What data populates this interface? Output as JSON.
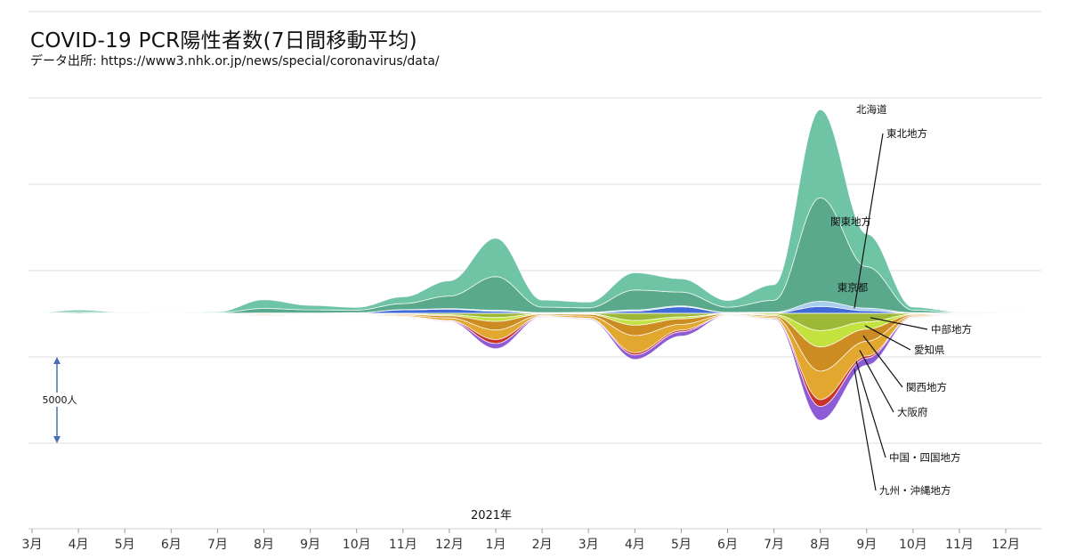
{
  "header": {
    "title": "COVID-19 PCR陽性者数(7日間移動平均)",
    "source": "データ出所: https://www3.nhk.or.jp/news/special/coronavirus/data/"
  },
  "chart_data": {
    "type": "area",
    "subtype": "streamgraph",
    "title": "COVID-19 PCR陽性者数(7日間移動平均)",
    "unit": "人",
    "scale_bar": {
      "label": "5000人",
      "value": 5000
    },
    "year_label": "2021年",
    "x_ticks": [
      "3月",
      "4月",
      "5月",
      "6月",
      "7月",
      "8月",
      "9月",
      "10月",
      "11月",
      "12月",
      "1月",
      "2月",
      "3月",
      "4月",
      "5月",
      "6月",
      "7月",
      "8月",
      "9月",
      "10月",
      "11月",
      "12月"
    ],
    "x_months": [
      0,
      1,
      2,
      3,
      4,
      5,
      6,
      7,
      8,
      9,
      10,
      11,
      12,
      13,
      14,
      15,
      16,
      17,
      18,
      19,
      20,
      21,
      21.85
    ],
    "series": [
      {
        "name": "九州・沖縄地方",
        "color": "#8e5bd6",
        "above": false,
        "label": true,
        "values": [
          0,
          0,
          0,
          0,
          0,
          25,
          5,
          10,
          15,
          40,
          300,
          35,
          45,
          260,
          250,
          18,
          50,
          800,
          420,
          30,
          10,
          5,
          3
        ]
      },
      {
        "name": "中国・四国地方",
        "color": "#c93428",
        "above": false,
        "label": true,
        "values": [
          0,
          0,
          0,
          0,
          0,
          12,
          5,
          8,
          12,
          40,
          230,
          20,
          25,
          120,
          100,
          12,
          18,
          400,
          120,
          15,
          5,
          3,
          2
        ]
      },
      {
        "name": "大阪府",
        "color": "#e2a72f",
        "above": false,
        "label": true,
        "values": [
          0,
          12,
          0,
          0,
          0,
          45,
          15,
          25,
          55,
          140,
          550,
          50,
          120,
          1000,
          330,
          30,
          80,
          1650,
          850,
          60,
          20,
          8,
          5
        ]
      },
      {
        "name": "関西地方",
        "color": "#cd8c22",
        "above": false,
        "label": true,
        "values": [
          0,
          8,
          0,
          0,
          0,
          40,
          15,
          25,
          55,
          120,
          500,
          60,
          100,
          600,
          320,
          40,
          75,
          1400,
          700,
          60,
          15,
          8,
          5
        ]
      },
      {
        "name": "愛知県",
        "color": "#c4e23f",
        "above": false,
        "label": true,
        "values": [
          0,
          0,
          0,
          0,
          0,
          20,
          5,
          10,
          25,
          60,
          220,
          20,
          20,
          270,
          110,
          10,
          55,
          950,
          420,
          25,
          5,
          3,
          2
        ]
      },
      {
        "name": "中部地方",
        "color": "#9db836",
        "above": false,
        "label": true,
        "values": [
          0,
          0,
          0,
          0,
          0,
          20,
          8,
          12,
          40,
          90,
          250,
          30,
          40,
          420,
          210,
          20,
          75,
          1000,
          500,
          50,
          10,
          5,
          3
        ]
      },
      {
        "name": "東京都",
        "color": "#6ec4a4",
        "above": true,
        "label": true,
        "values": [
          0,
          120,
          30,
          20,
          50,
          500,
          260,
          160,
          390,
          880,
          2220,
          410,
          330,
          1000,
          770,
          390,
          900,
          5100,
          1900,
          170,
          40,
          20,
          13
        ]
      },
      {
        "name": "関東地方",
        "color": "#5aa98c",
        "above": true,
        "label": true,
        "values": [
          0,
          70,
          25,
          15,
          30,
          270,
          180,
          150,
          350,
          730,
          1950,
          320,
          260,
          1150,
          800,
          300,
          690,
          6000,
          2400,
          150,
          35,
          15,
          10
        ]
      },
      {
        "name": "東北地方",
        "color": "#a9cdee",
        "above": true,
        "label": true,
        "values": [
          0,
          0,
          0,
          0,
          0,
          5,
          5,
          5,
          15,
          30,
          60,
          20,
          30,
          70,
          50,
          15,
          40,
          300,
          150,
          25,
          5,
          2,
          1
        ]
      },
      {
        "name": "北海道",
        "color": "#3f6ad8",
        "above": true,
        "label": true,
        "values": [
          0,
          0,
          0,
          0,
          0,
          10,
          15,
          30,
          200,
          240,
          120,
          20,
          30,
          130,
          380,
          40,
          25,
          400,
          150,
          15,
          5,
          2,
          1
        ]
      }
    ]
  }
}
